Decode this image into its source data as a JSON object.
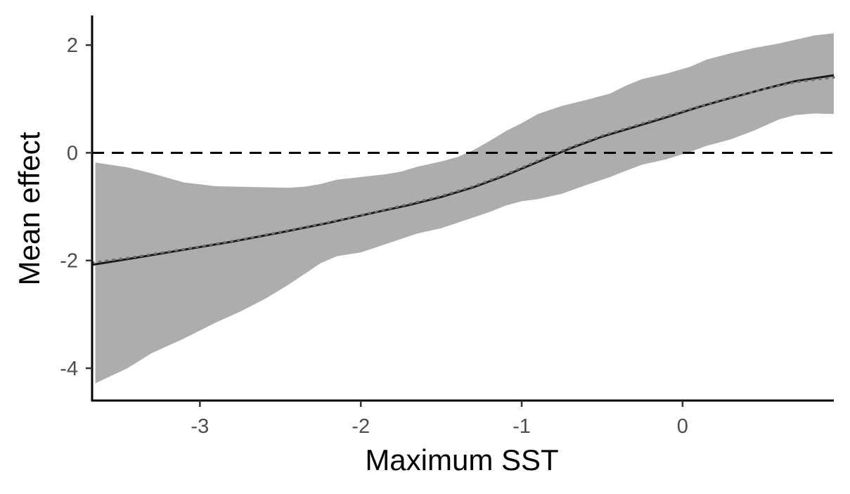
{
  "chart_data": {
    "type": "line",
    "title": "",
    "xlabel": "Maximum SST",
    "ylabel": "Mean effect",
    "xlim": [
      -3.67,
      0.94
    ],
    "ylim": [
      -4.6,
      2.55
    ],
    "x_ticks": [
      -3,
      -2,
      -1,
      0
    ],
    "x_tick_labels": [
      "-3",
      "-2",
      "-1",
      "0"
    ],
    "y_ticks": [
      -4,
      -2,
      0,
      2
    ],
    "y_tick_labels": [
      "-4",
      "-2",
      "0",
      "2"
    ],
    "grid": false,
    "legend": "none",
    "reference_line": {
      "y": 0,
      "style": "dashed",
      "color": "#000000"
    },
    "colors": {
      "band": "#adadad",
      "mean_line": "#1a1a1a",
      "smooth_line": "#6e6e6e",
      "axis": "#000000"
    },
    "series": [
      {
        "kind": "ribbon",
        "x": [
          -3.65,
          -3.45,
          -3.3,
          -3.1,
          -2.9,
          -2.75,
          -2.6,
          -2.45,
          -2.35,
          -2.25,
          -2.15,
          -2.0,
          -1.85,
          -1.75,
          -1.65,
          -1.5,
          -1.4,
          -1.3,
          -1.2,
          -1.1,
          -1.0,
          -0.9,
          -0.75,
          -0.6,
          -0.45,
          -0.35,
          -0.25,
          -0.1,
          0.05,
          0.15,
          0.3,
          0.45,
          0.6,
          0.7,
          0.82,
          0.94
        ],
        "lower": [
          -4.28,
          -4.0,
          -3.72,
          -3.45,
          -3.15,
          -2.95,
          -2.72,
          -2.45,
          -2.25,
          -2.05,
          -1.92,
          -1.85,
          -1.7,
          -1.6,
          -1.5,
          -1.4,
          -1.3,
          -1.2,
          -1.1,
          -0.98,
          -0.9,
          -0.86,
          -0.76,
          -0.6,
          -0.45,
          -0.33,
          -0.22,
          -0.12,
          0.02,
          0.13,
          0.25,
          0.42,
          0.62,
          0.7,
          0.73,
          0.72
        ],
        "upper": [
          -0.18,
          -0.27,
          -0.38,
          -0.55,
          -0.62,
          -0.63,
          -0.64,
          -0.65,
          -0.63,
          -0.58,
          -0.5,
          -0.45,
          -0.4,
          -0.35,
          -0.26,
          -0.16,
          -0.08,
          0.05,
          0.22,
          0.4,
          0.55,
          0.72,
          0.87,
          0.98,
          1.1,
          1.25,
          1.37,
          1.47,
          1.6,
          1.73,
          1.85,
          1.95,
          2.03,
          2.1,
          2.18,
          2.22
        ]
      },
      {
        "kind": "line",
        "style": "solid",
        "x": [
          -3.67,
          -3.4,
          -3.1,
          -2.8,
          -2.5,
          -2.2,
          -1.9,
          -1.7,
          -1.5,
          -1.3,
          -1.1,
          -0.9,
          -0.7,
          -0.5,
          -0.3,
          -0.1,
          0.1,
          0.3,
          0.5,
          0.7,
          0.94
        ],
        "y": [
          -2.08,
          -1.95,
          -1.8,
          -1.65,
          -1.48,
          -1.3,
          -1.1,
          -0.97,
          -0.82,
          -0.64,
          -0.42,
          -0.17,
          0.08,
          0.3,
          0.48,
          0.66,
          0.85,
          1.02,
          1.18,
          1.33,
          1.44
        ]
      },
      {
        "kind": "line",
        "style": "dotted",
        "x": [
          -3.67,
          -3.4,
          -3.1,
          -2.8,
          -2.5,
          -2.2,
          -1.9,
          -1.7,
          -1.5,
          -1.3,
          -1.1,
          -0.9,
          -0.7,
          -0.5,
          -0.3,
          -0.1,
          0.1,
          0.3,
          0.5,
          0.7,
          0.94
        ],
        "y": [
          -2.04,
          -1.93,
          -1.79,
          -1.64,
          -1.47,
          -1.29,
          -1.09,
          -0.95,
          -0.8,
          -0.62,
          -0.4,
          -0.15,
          0.1,
          0.32,
          0.5,
          0.68,
          0.86,
          1.03,
          1.18,
          1.31,
          1.4
        ]
      }
    ]
  }
}
